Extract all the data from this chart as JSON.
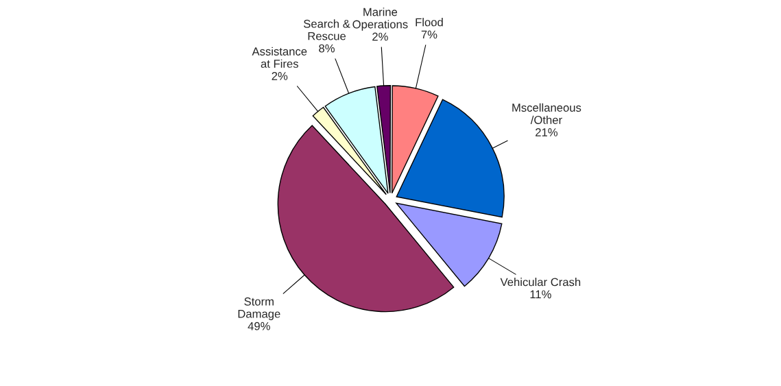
{
  "chart_data": {
    "type": "pie",
    "categories": [
      "Marine\nOperations",
      "Flood",
      "Mscellaneous\n/Other",
      "Vehicular Crash",
      "Storm\nDamage",
      "Assistance\nat Fires",
      "Search &\nRescue"
    ],
    "values": [
      2,
      7,
      21,
      11,
      49,
      2,
      8
    ],
    "value_labels": [
      "2%",
      "7%",
      "21%",
      "11%",
      "49%",
      "2%",
      "8%"
    ],
    "colors": [
      "#660066",
      "#ff8080",
      "#0066cc",
      "#9999ff",
      "#993366",
      "#ffffcc",
      "#ccffff"
    ]
  }
}
